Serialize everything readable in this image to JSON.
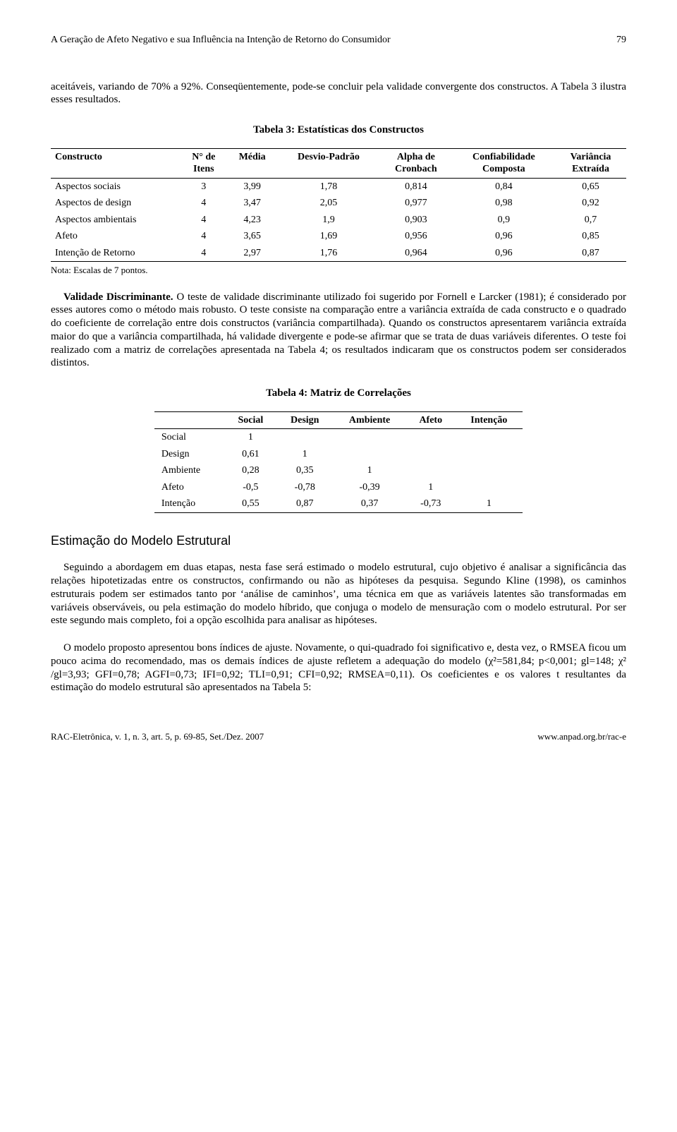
{
  "header": {
    "running_title": "A Geração de Afeto Negativo e sua Influência na Intenção de Retorno do Consumidor",
    "page_number": "79"
  },
  "para_intro": "aceitáveis, variando de 70% a 92%. Conseqüentemente, pode-se concluir pela validade convergente dos constructos. A Tabela 3 ilustra esses resultados.",
  "table3": {
    "title": "Tabela 3: Estatísticas dos Constructos",
    "columns": [
      "Constructo",
      "N° de\nItens",
      "Média",
      "Desvio-Padrão",
      "Alpha de\nCronbach",
      "Confiabilidade\nComposta",
      "Variância\nExtraída"
    ],
    "rows": [
      [
        "Aspectos sociais",
        "3",
        "3,99",
        "1,78",
        "0,814",
        "0,84",
        "0,65"
      ],
      [
        "Aspectos de design",
        "4",
        "3,47",
        "2,05",
        "0,977",
        "0,98",
        "0,92"
      ],
      [
        "Aspectos ambientais",
        "4",
        "4,23",
        "1,9",
        "0,903",
        "0,9",
        "0,7"
      ],
      [
        "Afeto",
        "4",
        "3,65",
        "1,69",
        "0,956",
        "0,96",
        "0,85"
      ],
      [
        "Intenção de Retorno",
        "4",
        "2,97",
        "1,76",
        "0,964",
        "0,96",
        "0,87"
      ]
    ],
    "note": "Nota: Escalas de 7 pontos."
  },
  "validity": {
    "runin": "Validade Discriminante.",
    "text": " O teste de validade discriminante utilizado foi sugerido por Fornell e Larcker (1981); é considerado por esses autores como o método mais robusto. O teste consiste na comparação entre a variância extraída de cada constructo e o quadrado do coeficiente de correlação entre dois constructos (variância compartilhada). Quando os constructos apresentarem variância extraída maior do que a variância compartilhada, há validade divergente e pode-se afirmar que se trata de duas variáveis diferentes. O teste foi realizado com a matriz de correlações apresentada na Tabela 4; os resultados indicaram que os constructos podem ser considerados distintos."
  },
  "table4": {
    "title": "Tabela 4: Matriz de Correlações",
    "columns": [
      "",
      "Social",
      "Design",
      "Ambiente",
      "Afeto",
      "Intenção"
    ],
    "rows": [
      [
        "Social",
        "1",
        "",
        "",
        "",
        ""
      ],
      [
        "Design",
        "0,61",
        "1",
        "",
        "",
        ""
      ],
      [
        "Ambiente",
        "0,28",
        "0,35",
        "1",
        "",
        ""
      ],
      [
        "Afeto",
        "-0,5",
        "-0,78",
        "-0,39",
        "1",
        ""
      ],
      [
        "Intenção",
        "0,55",
        "0,87",
        "0,37",
        "-0,73",
        "1"
      ]
    ]
  },
  "section_heading": "Estimação do Modelo Estrutural",
  "para_estim1": "Seguindo a abordagem em duas etapas, nesta fase será estimado o modelo estrutural, cujo objetivo é analisar a significância das relações hipotetizadas entre os constructos, confirmando ou não as hipóteses da pesquisa. Segundo Kline (1998), os caminhos estruturais podem ser estimados tanto por ‘análise de caminhos’, uma técnica em que as variáveis latentes são transformadas em variáveis observáveis, ou pela estimação do modelo híbrido, que conjuga o modelo de mensuração com o modelo estrutural. Por ser este segundo mais completo, foi a opção escolhida para analisar as hipóteses.",
  "para_estim2": "O modelo proposto apresentou bons índices de ajuste. Novamente, o qui-quadrado foi significativo e, desta vez, o RMSEA ficou um pouco acima do recomendado, mas os demais índices de ajuste refletem a adequação do modelo (χ²=581,84; p<0,001; gl=148; χ² /gl=3,93; GFI=0,78; AGFI=0,73; IFI=0,92; TLI=0,91; CFI=0,92; RMSEA=0,11). Os coeficientes e os valores t resultantes da estimação do modelo estrutural são apresentados na Tabela 5:",
  "footer": {
    "left": "RAC-Eletrônica, v. 1, n. 3, art. 5, p. 69-85, Set./Dez. 2007",
    "right": "www.anpad.org.br/rac-e"
  }
}
